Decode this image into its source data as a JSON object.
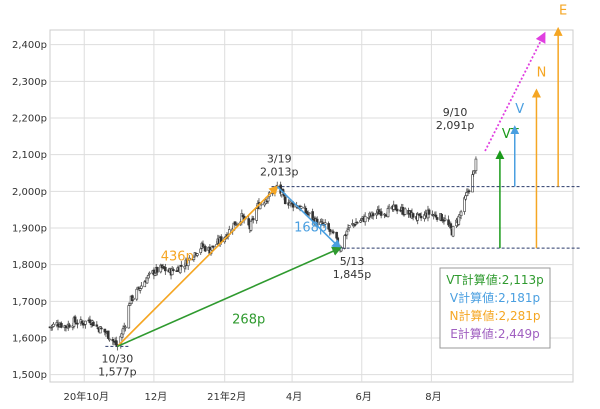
{
  "chart_data": {
    "type": "candlestick",
    "y_unit": "p",
    "ylim": [
      1480,
      2440
    ],
    "grid": true,
    "y_ticks": [
      {
        "value": 1500,
        "label": "1,500p"
      },
      {
        "value": 1600,
        "label": "1,600p"
      },
      {
        "value": 1700,
        "label": "1,700p"
      },
      {
        "value": 1800,
        "label": "1,800p"
      },
      {
        "value": 1900,
        "label": "1,900p"
      },
      {
        "value": 2000,
        "label": "2,000p"
      },
      {
        "value": 2100,
        "label": "2,100p"
      },
      {
        "value": 2200,
        "label": "2,200p"
      },
      {
        "value": 2300,
        "label": "2,300p"
      },
      {
        "value": 2400,
        "label": "2,400p"
      }
    ],
    "x_ticks": [
      {
        "date": "2020-10-01",
        "label": "20年10月"
      },
      {
        "date": "2020-12-01",
        "label": "12月"
      },
      {
        "date": "2021-02-01",
        "label": "21年2月"
      },
      {
        "date": "2021-04-01",
        "label": "4月"
      },
      {
        "date": "2021-06-01",
        "label": "6月"
      },
      {
        "date": "2021-08-01",
        "label": "8月"
      }
    ],
    "xlim": [
      "2020-09-01",
      "2021-12-03"
    ],
    "price_path": [
      [
        "2020-09-01",
        1630
      ],
      [
        "2020-09-08",
        1640
      ],
      [
        "2020-09-15",
        1632
      ],
      [
        "2020-09-22",
        1645
      ],
      [
        "2020-09-29",
        1640
      ],
      [
        "2020-10-06",
        1650
      ],
      [
        "2020-10-13",
        1628
      ],
      [
        "2020-10-20",
        1615
      ],
      [
        "2020-10-27",
        1590
      ],
      [
        "2020-10-30",
        1577
      ],
      [
        "2020-11-06",
        1640
      ],
      [
        "2020-11-10",
        1700
      ],
      [
        "2020-11-17",
        1730
      ],
      [
        "2020-11-24",
        1760
      ],
      [
        "2020-12-01",
        1780
      ],
      [
        "2020-12-08",
        1790
      ],
      [
        "2020-12-15",
        1780
      ],
      [
        "2020-12-22",
        1790
      ],
      [
        "2020-12-29",
        1805
      ],
      [
        "2021-01-05",
        1830
      ],
      [
        "2021-01-12",
        1850
      ],
      [
        "2021-01-19",
        1840
      ],
      [
        "2021-01-26",
        1860
      ],
      [
        "2021-02-02",
        1880
      ],
      [
        "2021-02-09",
        1910
      ],
      [
        "2021-02-16",
        1930
      ],
      [
        "2021-02-23",
        1900
      ],
      [
        "2021-03-02",
        1960
      ],
      [
        "2021-03-09",
        1980
      ],
      [
        "2021-03-16",
        2000
      ],
      [
        "2021-03-19",
        2013
      ],
      [
        "2021-03-26",
        1975
      ],
      [
        "2021-04-02",
        1965
      ],
      [
        "2021-04-09",
        1955
      ],
      [
        "2021-04-16",
        1935
      ],
      [
        "2021-04-23",
        1915
      ],
      [
        "2021-04-30",
        1905
      ],
      [
        "2021-05-07",
        1880
      ],
      [
        "2021-05-13",
        1845
      ],
      [
        "2021-05-20",
        1900
      ],
      [
        "2021-05-27",
        1915
      ],
      [
        "2021-06-03",
        1925
      ],
      [
        "2021-06-10",
        1935
      ],
      [
        "2021-06-17",
        1945
      ],
      [
        "2021-06-24",
        1945
      ],
      [
        "2021-07-01",
        1955
      ],
      [
        "2021-07-08",
        1945
      ],
      [
        "2021-07-15",
        1935
      ],
      [
        "2021-07-22",
        1925
      ],
      [
        "2021-07-29",
        1940
      ],
      [
        "2021-08-05",
        1935
      ],
      [
        "2021-08-12",
        1925
      ],
      [
        "2021-08-19",
        1890
      ],
      [
        "2021-08-26",
        1935
      ],
      [
        "2021-09-02",
        2000
      ],
      [
        "2021-09-07",
        2050
      ],
      [
        "2021-09-10",
        2091
      ]
    ],
    "points": [
      {
        "date": "2020-10-30",
        "value": 1577,
        "date_label": "10/30",
        "value_label": "1,577p"
      },
      {
        "date": "2021-03-19",
        "value": 2013,
        "date_label": "3/19",
        "value_label": "2,013p"
      },
      {
        "date": "2021-05-13",
        "value": 1845,
        "date_label": "5/13",
        "value_label": "1,845p"
      },
      {
        "date": "2021-09-10",
        "value": 2091,
        "date_label": "9/10",
        "value_label": "2,091p"
      }
    ],
    "waves": [
      {
        "label": "436p",
        "from": "2020-10-30",
        "to": "2021-03-19",
        "color": "#f5a623"
      },
      {
        "label": "168p",
        "from": "2021-03-19",
        "to": "2021-05-13",
        "color": "#4a9fe0"
      },
      {
        "label": "268p",
        "from": "2020-10-30",
        "to": "2021-05-13",
        "color": "#2f9a2f"
      }
    ],
    "targets": [
      {
        "name": "VT",
        "value": 2113,
        "color": "#1a9a1a",
        "arrow_date": "2021-09-30",
        "base": 1845
      },
      {
        "name": "V",
        "value": 2181,
        "color": "#4a9fe0",
        "arrow_date": "2021-10-13",
        "base": 2013
      },
      {
        "name": "N",
        "value": 2281,
        "color": "#f5a623",
        "arrow_date": "2021-11-01",
        "base": 1845
      },
      {
        "name": "E",
        "value": 2449,
        "color": "#f5a623",
        "arrow_date": "2021-11-20",
        "base": 2013
      }
    ],
    "projection": {
      "from": [
        "2021-09-17",
        2110
      ],
      "to": [
        "2021-11-08",
        2430
      ],
      "color": "#e040e0"
    },
    "dashed_levels": [
      2013,
      1845
    ],
    "legend": [
      {
        "text": "VT計算値:2,113p",
        "color": "#2f9a2f"
      },
      {
        "text": "V計算値:2,181p",
        "color": "#4a9fe0"
      },
      {
        "text": "N計算値:2,281p",
        "color": "#f5a623"
      },
      {
        "text": "E計算値:2,449p",
        "color": "#a05fc0"
      }
    ]
  }
}
